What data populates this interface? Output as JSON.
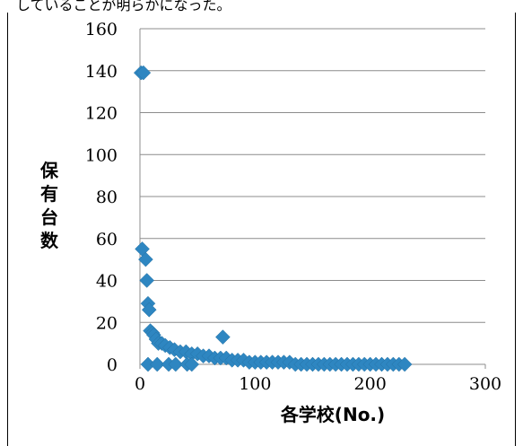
{
  "top_text": "していることが明らかになった。",
  "chart_data": {
    "type": "scatter",
    "title": "",
    "xlabel": "各学校(No.)",
    "ylabel": "保有台数",
    "xlim": [
      0,
      300
    ],
    "ylim": [
      0,
      160
    ],
    "xticks": [
      0,
      100,
      200,
      300
    ],
    "yticks": [
      0,
      20,
      40,
      60,
      80,
      100,
      120,
      140,
      160
    ],
    "grid": "horizontal",
    "marker": "diamond",
    "color": "#2e86c1",
    "points": [
      [
        1,
        139
      ],
      [
        3,
        139
      ],
      [
        2,
        55
      ],
      [
        5,
        50
      ],
      [
        6,
        40
      ],
      [
        7,
        29
      ],
      [
        8,
        26
      ],
      [
        9,
        16
      ],
      [
        11,
        15
      ],
      [
        12,
        14
      ],
      [
        14,
        12
      ],
      [
        16,
        10
      ],
      [
        19,
        10
      ],
      [
        22,
        9
      ],
      [
        26,
        8
      ],
      [
        30,
        7
      ],
      [
        35,
        6
      ],
      [
        40,
        6
      ],
      [
        45,
        5
      ],
      [
        50,
        5
      ],
      [
        55,
        4
      ],
      [
        60,
        4
      ],
      [
        65,
        3
      ],
      [
        70,
        3
      ],
      [
        72,
        13
      ],
      [
        75,
        3
      ],
      [
        80,
        2
      ],
      [
        85,
        2
      ],
      [
        90,
        2
      ],
      [
        95,
        1
      ],
      [
        100,
        1
      ],
      [
        105,
        1
      ],
      [
        110,
        1
      ],
      [
        115,
        1
      ],
      [
        120,
        1
      ],
      [
        125,
        1
      ],
      [
        130,
        1
      ],
      [
        7,
        0
      ],
      [
        15,
        0
      ],
      [
        25,
        0
      ],
      [
        31,
        0
      ],
      [
        41,
        0
      ],
      [
        45,
        0
      ],
      [
        135,
        0
      ],
      [
        140,
        0
      ],
      [
        145,
        0
      ],
      [
        150,
        0
      ],
      [
        155,
        0
      ],
      [
        160,
        0
      ],
      [
        165,
        0
      ],
      [
        170,
        0
      ],
      [
        175,
        0
      ],
      [
        180,
        0
      ],
      [
        185,
        0
      ],
      [
        190,
        0
      ],
      [
        195,
        0
      ],
      [
        200,
        0
      ],
      [
        205,
        0
      ],
      [
        210,
        0
      ],
      [
        215,
        0
      ],
      [
        220,
        0
      ],
      [
        225,
        0
      ],
      [
        230,
        0
      ]
    ]
  }
}
